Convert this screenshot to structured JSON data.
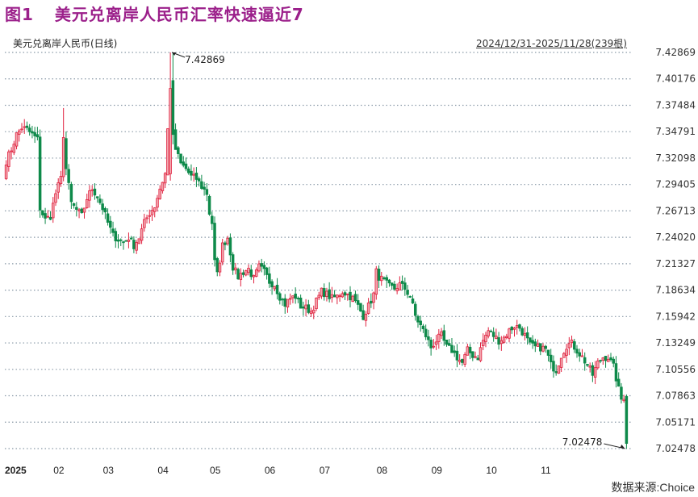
{
  "figure": {
    "label": "图1",
    "title": "美元兑离岸人民币汇率快速逼近7",
    "title_color": "#9b1f8a",
    "series_name": "美元兑离岸人民币(日线)",
    "range_text": "2024/12/31-2025/11/28(239根)",
    "source": "数据来源:Choice"
  },
  "colors": {
    "up": "#e0213f",
    "up_fill": "#f2a6ae",
    "down": "#0e8a4a",
    "grid": "#8a9aa8"
  },
  "chart_data": {
    "type": "candlestick",
    "title": "美元兑离岸人民币(日线)",
    "subtitle": "2024/12/31-2025/11/28(239根)",
    "xlabel": "",
    "ylabel": "",
    "ylim": [
      7.02478,
      7.42869
    ],
    "y_ticks": [
      "7.42869",
      "7.40176",
      "7.37484",
      "7.34791",
      "7.32098",
      "7.29405",
      "7.26713",
      "7.24020",
      "7.21327",
      "7.18634",
      "7.15942",
      "7.13249",
      "7.10556",
      "7.07863",
      "7.05171",
      "7.02478"
    ],
    "x_ticks": [
      "2025",
      "02",
      "03",
      "04",
      "05",
      "06",
      "07",
      "08",
      "09",
      "10",
      "11"
    ],
    "x_tick_index": [
      0,
      20,
      39,
      60,
      80,
      101,
      122,
      144,
      165,
      186,
      207
    ],
    "grid": true,
    "bar_count": 239,
    "annotations": [
      {
        "text": "7.42869",
        "type": "max",
        "index": 63
      },
      {
        "text": "7.02478",
        "type": "min",
        "index": 238
      }
    ],
    "close_anchors": [
      [
        0,
        7.318
      ],
      [
        2,
        7.33
      ],
      [
        4,
        7.345
      ],
      [
        6,
        7.352
      ],
      [
        8,
        7.35
      ],
      [
        10,
        7.345
      ],
      [
        12,
        7.34
      ],
      [
        13,
        7.27
      ],
      [
        15,
        7.258
      ],
      [
        17,
        7.262
      ],
      [
        19,
        7.285
      ],
      [
        21,
        7.3
      ],
      [
        22,
        7.345
      ],
      [
        23,
        7.31
      ],
      [
        25,
        7.275
      ],
      [
        27,
        7.268
      ],
      [
        29,
        7.262
      ],
      [
        31,
        7.28
      ],
      [
        33,
        7.29
      ],
      [
        35,
        7.282
      ],
      [
        37,
        7.27
      ],
      [
        39,
        7.255
      ],
      [
        41,
        7.242
      ],
      [
        43,
        7.238
      ],
      [
        45,
        7.235
      ],
      [
        47,
        7.24
      ],
      [
        49,
        7.232
      ],
      [
        51,
        7.24
      ],
      [
        53,
        7.255
      ],
      [
        55,
        7.265
      ],
      [
        57,
        7.272
      ],
      [
        59,
        7.29
      ],
      [
        61,
        7.305
      ],
      [
        62,
        7.35
      ],
      [
        63,
        7.4
      ],
      [
        64,
        7.345
      ],
      [
        65,
        7.33
      ],
      [
        67,
        7.315
      ],
      [
        69,
        7.31
      ],
      [
        71,
        7.302
      ],
      [
        73,
        7.3
      ],
      [
        75,
        7.292
      ],
      [
        77,
        7.285
      ],
      [
        78,
        7.265
      ],
      [
        79,
        7.255
      ],
      [
        80,
        7.215
      ],
      [
        81,
        7.202
      ],
      [
        83,
        7.232
      ],
      [
        85,
        7.24
      ],
      [
        87,
        7.21
      ],
      [
        89,
        7.2
      ],
      [
        91,
        7.205
      ],
      [
        93,
        7.208
      ],
      [
        95,
        7.198
      ],
      [
        97,
        7.21
      ],
      [
        99,
        7.205
      ],
      [
        101,
        7.195
      ],
      [
        103,
        7.192
      ],
      [
        105,
        7.18
      ],
      [
        107,
        7.172
      ],
      [
        109,
        7.178
      ],
      [
        111,
        7.18
      ],
      [
        113,
        7.17
      ],
      [
        115,
        7.168
      ],
      [
        117,
        7.165
      ],
      [
        119,
        7.175
      ],
      [
        121,
        7.185
      ],
      [
        123,
        7.182
      ],
      [
        125,
        7.178
      ],
      [
        127,
        7.18
      ],
      [
        129,
        7.185
      ],
      [
        131,
        7.182
      ],
      [
        133,
        7.178
      ],
      [
        135,
        7.17
      ],
      [
        137,
        7.16
      ],
      [
        139,
        7.17
      ],
      [
        141,
        7.182
      ],
      [
        142,
        7.205
      ],
      [
        143,
        7.2
      ],
      [
        145,
        7.195
      ],
      [
        147,
        7.19
      ],
      [
        149,
        7.188
      ],
      [
        151,
        7.192
      ],
      [
        153,
        7.188
      ],
      [
        155,
        7.18
      ],
      [
        157,
        7.16
      ],
      [
        159,
        7.15
      ],
      [
        161,
        7.14
      ],
      [
        163,
        7.128
      ],
      [
        165,
        7.135
      ],
      [
        167,
        7.14
      ],
      [
        169,
        7.128
      ],
      [
        171,
        7.125
      ],
      [
        173,
        7.118
      ],
      [
        175,
        7.112
      ],
      [
        177,
        7.125
      ],
      [
        179,
        7.12
      ],
      [
        181,
        7.118
      ],
      [
        183,
        7.135
      ],
      [
        185,
        7.145
      ],
      [
        187,
        7.14
      ],
      [
        189,
        7.135
      ],
      [
        191,
        7.138
      ],
      [
        193,
        7.145
      ],
      [
        195,
        7.15
      ],
      [
        197,
        7.148
      ],
      [
        199,
        7.14
      ],
      [
        201,
        7.13
      ],
      [
        203,
        7.128
      ],
      [
        205,
        7.128
      ],
      [
        207,
        7.126
      ],
      [
        209,
        7.11
      ],
      [
        211,
        7.105
      ],
      [
        213,
        7.12
      ],
      [
        215,
        7.13
      ],
      [
        217,
        7.132
      ],
      [
        219,
        7.125
      ],
      [
        221,
        7.118
      ],
      [
        223,
        7.11
      ],
      [
        225,
        7.1
      ],
      [
        227,
        7.112
      ],
      [
        229,
        7.118
      ],
      [
        231,
        7.118
      ],
      [
        233,
        7.108
      ],
      [
        235,
        7.085
      ],
      [
        236,
        7.075
      ],
      [
        237,
        7.078
      ],
      [
        238,
        7.03
      ]
    ]
  }
}
